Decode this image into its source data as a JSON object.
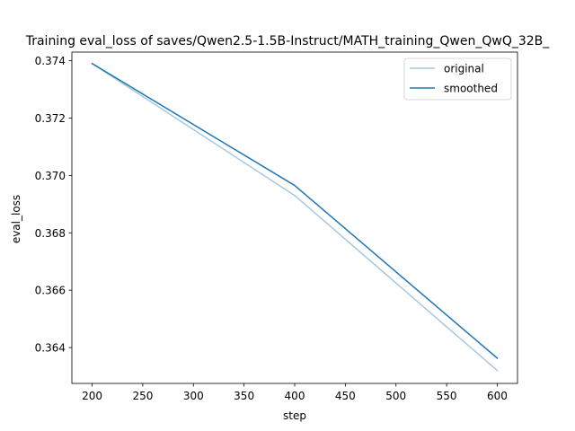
{
  "chart_data": {
    "type": "line",
    "title": "Training eval_loss of saves/Qwen2.5-1.5B-Instruct/MATH_training_Qwen_QwQ_32B_",
    "xlabel": "step",
    "ylabel": "eval_loss",
    "xlim": [
      180,
      620
    ],
    "ylim": [
      0.36275,
      0.3743
    ],
    "xticks": [
      200,
      250,
      300,
      350,
      400,
      450,
      500,
      550,
      600
    ],
    "yticks": [
      0.364,
      0.366,
      0.368,
      0.37,
      0.372,
      0.374
    ],
    "ytick_labels": [
      "0.364",
      "0.366",
      "0.368",
      "0.370",
      "0.372",
      "0.374"
    ],
    "grid": false,
    "legend": "top-right",
    "series": [
      {
        "name": "original",
        "color": "#a6c8e0",
        "x": [
          200,
          400,
          600
        ],
        "y": [
          0.3739,
          0.3693,
          0.3632
        ]
      },
      {
        "name": "smoothed",
        "color": "#1f77b4",
        "x": [
          200,
          400,
          600
        ],
        "y": [
          0.3739,
          0.36965,
          0.36363
        ]
      }
    ]
  }
}
